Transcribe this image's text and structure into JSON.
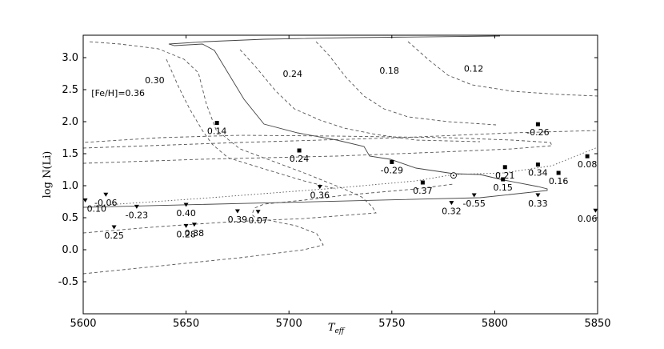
{
  "chart_data": {
    "type": "scatter",
    "title": "",
    "xlabel": "T",
    "xlabel_sub": "eff",
    "ylabel": "log N(Li)",
    "xlim": [
      5600,
      5850
    ],
    "ylim": [
      -1.0,
      3.35
    ],
    "xticks": [
      "5600",
      "5650",
      "5700",
      "5750",
      "5800",
      "5850"
    ],
    "xtick_values": [
      5600,
      5650,
      5700,
      5750,
      5800,
      5850
    ],
    "yticks": [
      "3.0",
      "2.5",
      "2.0",
      "1.5",
      "1.0",
      "0.5",
      "0.0",
      "-0.5"
    ],
    "ytick_values": [
      3.0,
      2.5,
      2.0,
      1.5,
      1.0,
      0.5,
      0.0,
      -0.5
    ],
    "grid": false,
    "sun_marker": {
      "x": 5780,
      "y": 1.16
    },
    "curve_labels": [
      {
        "text": "0.30",
        "x": 5630,
        "y": 2.6
      },
      {
        "text": "0.24",
        "x": 5697,
        "y": 2.7
      },
      {
        "text": "0.18",
        "x": 5744,
        "y": 2.75
      },
      {
        "text": "0.12",
        "x": 5785,
        "y": 2.78
      },
      {
        "text": "[Fe/H]=0.36",
        "x": 5604,
        "y": 2.4
      }
    ],
    "series": [
      {
        "marker": "square",
        "points": [
          {
            "x": 5665,
            "y": 1.98,
            "label": "0.14"
          },
          {
            "x": 5705,
            "y": 1.55,
            "label": "0.24"
          },
          {
            "x": 5750,
            "y": 1.37,
            "label": "-0.29"
          },
          {
            "x": 5765,
            "y": 1.05,
            "label": "0.37"
          },
          {
            "x": 5805,
            "y": 1.29,
            "label": "0.21"
          },
          {
            "x": 5804,
            "y": 1.1,
            "label": "0.15"
          },
          {
            "x": 5821,
            "y": 1.96,
            "label": "-0.26"
          },
          {
            "x": 5821,
            "y": 1.33,
            "label": "0.34"
          },
          {
            "x": 5831,
            "y": 1.2,
            "label": "0.16"
          },
          {
            "x": 5845,
            "y": 1.46,
            "label": "0.08"
          }
        ]
      },
      {
        "marker": "triangle-down",
        "points": [
          {
            "x": 5601,
            "y": 0.77,
            "label": "0.10"
          },
          {
            "x": 5611,
            "y": 0.86,
            "label": "-0.06"
          },
          {
            "x": 5626,
            "y": 0.67,
            "label": "-0.23"
          },
          {
            "x": 5615,
            "y": 0.35,
            "label": "0.25"
          },
          {
            "x": 5650,
            "y": 0.7,
            "label": "0.40"
          },
          {
            "x": 5650,
            "y": 0.37,
            "label": "0.28"
          },
          {
            "x": 5654,
            "y": 0.39,
            "label": "0.38"
          },
          {
            "x": 5675,
            "y": 0.6,
            "label": "0.39"
          },
          {
            "x": 5685,
            "y": 0.59,
            "label": "0.07"
          },
          {
            "x": 5715,
            "y": 0.98,
            "label": "0.36"
          },
          {
            "x": 5779,
            "y": 0.73,
            "label": "0.32"
          },
          {
            "x": 5790,
            "y": 0.85,
            "label": "-0.55"
          },
          {
            "x": 5821,
            "y": 0.85,
            "label": "0.33"
          },
          {
            "x": 5849,
            "y": 0.61,
            "label": "0.06"
          }
        ]
      }
    ]
  }
}
